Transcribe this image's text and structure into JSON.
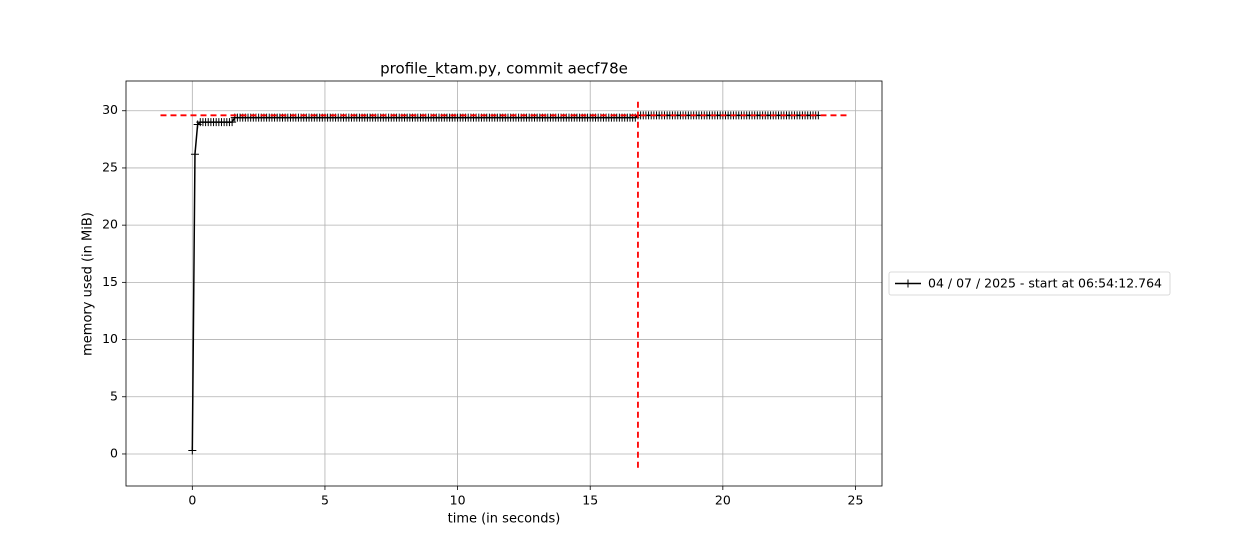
{
  "chart_data": {
    "type": "line",
    "title": "profile_ktam.py, commit aecf78e",
    "xlabel": "time (in seconds)",
    "ylabel": "memory used (in MiB)",
    "x": [
      0,
      0.1,
      0.2,
      0.3,
      0.4,
      0.5,
      0.6,
      0.7,
      0.8,
      0.9,
      1,
      1.1,
      1.2,
      1.3,
      1.4,
      1.5,
      1.6,
      1.7,
      1.8,
      1.9,
      2,
      2.1,
      2.2,
      2.3,
      2.4,
      2.5,
      2.6,
      2.7,
      2.8,
      2.9,
      3,
      3.1,
      3.2,
      3.3,
      3.4,
      3.5,
      3.6,
      3.7,
      3.8,
      3.9,
      4,
      4.1,
      4.2,
      4.3,
      4.4,
      4.5,
      4.6,
      4.7,
      4.8,
      4.9,
      5,
      5.1,
      5.2,
      5.3,
      5.4,
      5.5,
      5.6,
      5.7,
      5.8,
      5.9,
      6,
      6.1,
      6.2,
      6.3,
      6.4,
      6.5,
      6.6,
      6.7,
      6.8,
      6.9,
      7,
      7.1,
      7.2,
      7.3,
      7.4,
      7.5,
      7.6,
      7.7,
      7.8,
      7.9,
      8,
      8.1,
      8.2,
      8.3,
      8.4,
      8.5,
      8.6,
      8.7,
      8.8,
      8.9,
      9,
      9.1,
      9.2,
      9.3,
      9.4,
      9.5,
      9.6,
      9.7,
      9.8,
      9.9,
      10,
      10.1,
      10.2,
      10.3,
      10.4,
      10.5,
      10.6,
      10.7,
      10.8,
      10.9,
      11,
      11.1,
      11.2,
      11.3,
      11.4,
      11.5,
      11.6,
      11.7,
      11.8,
      11.9,
      12,
      12.1,
      12.2,
      12.3,
      12.4,
      12.5,
      12.6,
      12.7,
      12.8,
      12.9,
      13,
      13.1,
      13.2,
      13.3,
      13.4,
      13.5,
      13.6,
      13.7,
      13.8,
      13.9,
      14,
      14.1,
      14.2,
      14.3,
      14.4,
      14.5,
      14.6,
      14.7,
      14.8,
      14.9,
      15,
      15.1,
      15.2,
      15.3,
      15.4,
      15.5,
      15.6,
      15.7,
      15.8,
      15.9,
      16,
      16.1,
      16.2,
      16.3,
      16.4,
      16.5,
      16.6,
      16.7,
      16.8,
      16.9,
      17,
      17.1,
      17.2,
      17.3,
      17.4,
      17.5,
      17.6,
      17.7,
      17.8,
      17.9,
      18,
      18.1,
      18.2,
      18.3,
      18.4,
      18.5,
      18.6,
      18.7,
      18.8,
      18.9,
      19,
      19.1,
      19.2,
      19.3,
      19.4,
      19.5,
      19.6,
      19.7,
      19.8,
      19.9,
      20,
      20.1,
      20.2,
      20.3,
      20.4,
      20.5,
      20.6,
      20.7,
      20.8,
      20.9,
      21,
      21.1,
      21.2,
      21.3,
      21.4,
      21.5,
      21.6,
      21.7,
      21.8,
      21.9,
      22,
      22.1,
      22.2,
      22.3,
      22.4,
      22.5,
      22.6,
      22.7,
      22.8,
      22.9,
      23,
      23.1,
      23.2,
      23.3,
      23.4,
      23.5,
      23.6
    ],
    "series": [
      {
        "name": "04 / 07 / 2025 - start at 06:54:12.764",
        "color": "#000000",
        "values": [
          0.3,
          26.2,
          28.8,
          29,
          29,
          29,
          29,
          29,
          29,
          29,
          29,
          29,
          29,
          29,
          29,
          29,
          29.4,
          29.4,
          29.4,
          29.4,
          29.4,
          29.4,
          29.4,
          29.4,
          29.4,
          29.4,
          29.4,
          29.4,
          29.4,
          29.4,
          29.4,
          29.4,
          29.4,
          29.4,
          29.4,
          29.4,
          29.4,
          29.4,
          29.4,
          29.4,
          29.4,
          29.4,
          29.4,
          29.4,
          29.4,
          29.4,
          29.4,
          29.4,
          29.4,
          29.4,
          29.4,
          29.4,
          29.4,
          29.4,
          29.4,
          29.4,
          29.4,
          29.4,
          29.4,
          29.4,
          29.4,
          29.4,
          29.4,
          29.4,
          29.4,
          29.4,
          29.4,
          29.4,
          29.4,
          29.4,
          29.4,
          29.4,
          29.4,
          29.4,
          29.4,
          29.4,
          29.4,
          29.4,
          29.4,
          29.4,
          29.4,
          29.4,
          29.4,
          29.4,
          29.4,
          29.4,
          29.4,
          29.4,
          29.4,
          29.4,
          29.4,
          29.4,
          29.4,
          29.4,
          29.4,
          29.4,
          29.4,
          29.4,
          29.4,
          29.4,
          29.4,
          29.4,
          29.4,
          29.4,
          29.4,
          29.4,
          29.4,
          29.4,
          29.4,
          29.4,
          29.4,
          29.4,
          29.4,
          29.4,
          29.4,
          29.4,
          29.4,
          29.4,
          29.4,
          29.4,
          29.4,
          29.4,
          29.4,
          29.4,
          29.4,
          29.4,
          29.4,
          29.4,
          29.4,
          29.4,
          29.4,
          29.4,
          29.4,
          29.4,
          29.4,
          29.4,
          29.4,
          29.4,
          29.4,
          29.4,
          29.4,
          29.4,
          29.4,
          29.4,
          29.4,
          29.4,
          29.4,
          29.4,
          29.4,
          29.4,
          29.4,
          29.4,
          29.4,
          29.4,
          29.4,
          29.4,
          29.4,
          29.4,
          29.4,
          29.4,
          29.4,
          29.4,
          29.4,
          29.4,
          29.4,
          29.4,
          29.4,
          29.4,
          29.6,
          29.6,
          29.6,
          29.6,
          29.6,
          29.6,
          29.6,
          29.6,
          29.6,
          29.6,
          29.6,
          29.6,
          29.6,
          29.6,
          29.6,
          29.6,
          29.6,
          29.6,
          29.6,
          29.6,
          29.6,
          29.6,
          29.6,
          29.6,
          29.6,
          29.6,
          29.6,
          29.6,
          29.6,
          29.6,
          29.6,
          29.6,
          29.6,
          29.6,
          29.6,
          29.6,
          29.6,
          29.6,
          29.6,
          29.6,
          29.6,
          29.6,
          29.6,
          29.6,
          29.6,
          29.6,
          29.6,
          29.6,
          29.6,
          29.6,
          29.6,
          29.6,
          29.6,
          29.6,
          29.6,
          29.6,
          29.6,
          29.6,
          29.6,
          29.6,
          29.6,
          29.6,
          29.6,
          29.6,
          29.6,
          29.6,
          29.6,
          29.6,
          29.6
        ]
      }
    ],
    "max_hline": {
      "y": 29.6,
      "xmin": -1.2,
      "xmax": 24.8,
      "color": "#ff0000"
    },
    "max_vline": {
      "x": 16.8,
      "ymin": -1.2,
      "ymax": 31.0,
      "color": "#ff0000"
    },
    "xlim": [
      -2.5,
      26.0
    ],
    "xticks": [
      0,
      5,
      10,
      15,
      20,
      25
    ],
    "ylim": [
      -2.8,
      32.6
    ],
    "yticks": [
      0,
      5,
      10,
      15,
      20,
      25,
      30
    ],
    "grid": true,
    "legend": "outside right"
  }
}
